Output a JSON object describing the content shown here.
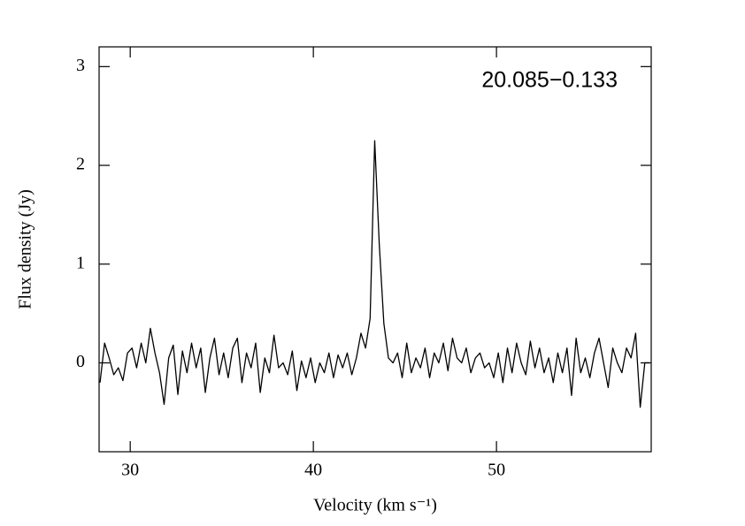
{
  "chart_data": {
    "type": "line",
    "annotation": "20.085−0.133",
    "x_label": "Velocity (km s⁻¹)",
    "y_label": "Flux density (Jy)",
    "xlim": [
      28.3,
      58.45
    ],
    "ylim": [
      -0.9,
      3.2
    ],
    "xticks": [
      30,
      40,
      50
    ],
    "yticks": [
      0,
      1,
      2,
      3
    ],
    "x": [
      28.35,
      28.6,
      28.85,
      29.1,
      29.35,
      29.6,
      29.85,
      30.1,
      30.35,
      30.6,
      30.85,
      31.1,
      31.35,
      31.6,
      31.85,
      32.1,
      32.35,
      32.6,
      32.85,
      33.1,
      33.35,
      33.6,
      33.85,
      34.1,
      34.35,
      34.6,
      34.85,
      35.1,
      35.35,
      35.6,
      35.85,
      36.1,
      36.35,
      36.6,
      36.85,
      37.1,
      37.35,
      37.6,
      37.85,
      38.1,
      38.35,
      38.6,
      38.85,
      39.1,
      39.35,
      39.6,
      39.85,
      40.1,
      40.35,
      40.6,
      40.85,
      41.1,
      41.35,
      41.6,
      41.85,
      42.1,
      42.35,
      42.6,
      42.85,
      43.1,
      43.35,
      43.6,
      43.85,
      44.1,
      44.35,
      44.6,
      44.85,
      45.1,
      45.35,
      45.6,
      45.85,
      46.1,
      46.35,
      46.6,
      46.85,
      47.1,
      47.35,
      47.6,
      47.85,
      48.1,
      48.35,
      48.6,
      48.85,
      49.1,
      49.35,
      49.6,
      49.85,
      50.1,
      50.35,
      50.6,
      50.85,
      51.1,
      51.35,
      51.6,
      51.85,
      52.1,
      52.35,
      52.6,
      52.85,
      53.1,
      53.35,
      53.6,
      53.85,
      54.1,
      54.35,
      54.6,
      54.85,
      55.1,
      55.35,
      55.6,
      55.85,
      56.1,
      56.35,
      56.6,
      56.85,
      57.1,
      57.35,
      57.6,
      57.85,
      58.1,
      58.35
    ],
    "series": [
      {
        "color": "#000000",
        "values": [
          -0.2,
          0.2,
          0.05,
          -0.12,
          -0.05,
          -0.18,
          0.1,
          0.15,
          -0.05,
          0.2,
          0.0,
          0.35,
          0.1,
          -0.1,
          -0.42,
          0.05,
          0.18,
          -0.32,
          0.12,
          -0.1,
          0.2,
          -0.05,
          0.15,
          -0.3,
          0.05,
          0.25,
          -0.12,
          0.1,
          -0.15,
          0.15,
          0.25,
          -0.2,
          0.1,
          -0.05,
          0.2,
          -0.3,
          0.05,
          -0.1,
          0.28,
          -0.05,
          0.0,
          -0.12,
          0.12,
          -0.28,
          0.02,
          -0.15,
          0.05,
          -0.2,
          0.0,
          -0.1,
          0.1,
          -0.15,
          0.08,
          -0.05,
          0.1,
          -0.12,
          0.05,
          0.3,
          0.15,
          0.45,
          2.25,
          1.2,
          0.4,
          0.05,
          0.0,
          0.1,
          -0.15,
          0.2,
          -0.1,
          0.05,
          -0.05,
          0.15,
          -0.15,
          0.1,
          0.0,
          0.2,
          -0.08,
          0.25,
          0.05,
          0.0,
          0.15,
          -0.1,
          0.05,
          0.1,
          -0.05,
          0.0,
          -0.15,
          0.1,
          -0.2,
          0.15,
          -0.1,
          0.2,
          0.0,
          -0.12,
          0.22,
          -0.05,
          0.15,
          -0.1,
          0.05,
          -0.2,
          0.1,
          -0.1,
          0.15,
          -0.33,
          0.25,
          -0.1,
          0.05,
          -0.15,
          0.1,
          0.25,
          0.0,
          -0.25,
          0.15,
          0.0,
          -0.1,
          0.15,
          0.05,
          0.3,
          -0.45,
          0.0,
          0.0
        ]
      }
    ]
  }
}
